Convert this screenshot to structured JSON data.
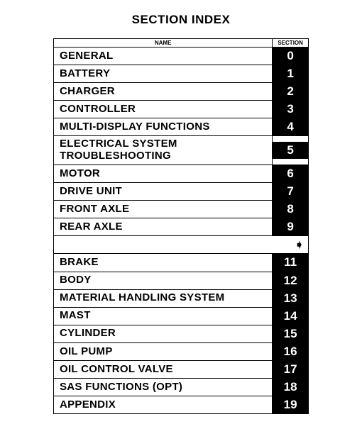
{
  "title": "SECTION INDEX",
  "header": {
    "name": "NAME",
    "section": "SECTION"
  },
  "rows": [
    {
      "name": "GENERAL",
      "section": "0",
      "black": true
    },
    {
      "name": "BATTERY",
      "section": "1",
      "black": true
    },
    {
      "name": "CHARGER",
      "section": "2",
      "black": true
    },
    {
      "name": "CONTROLLER",
      "section": "3",
      "black": true
    },
    {
      "name": "MULTI-DISPLAY FUNCTIONS",
      "section": "4",
      "black": true
    },
    {
      "name": "ELECTRICAL SYSTEM TROUBLESHOOTING",
      "section": "5",
      "black": true
    },
    {
      "name": "MOTOR",
      "section": "6",
      "black": true
    },
    {
      "name": "DRIVE UNIT",
      "section": "7",
      "black": true
    },
    {
      "name": "FRONT AXLE",
      "section": "8",
      "black": true
    },
    {
      "name": "REAR AXLE",
      "section": "9",
      "black": true
    },
    {
      "name": "",
      "section": "➧",
      "black": false
    },
    {
      "name": "BRAKE",
      "section": "11",
      "black": true
    },
    {
      "name": "BODY",
      "section": "12",
      "black": true
    },
    {
      "name": "MATERIAL HANDLING SYSTEM",
      "section": "13",
      "black": true
    },
    {
      "name": "MAST",
      "section": "14",
      "black": true
    },
    {
      "name": "CYLINDER",
      "section": "15",
      "black": true
    },
    {
      "name": "OIL PUMP",
      "section": "16",
      "black": true
    },
    {
      "name": "OIL CONTROL VALVE",
      "section": "17",
      "black": true
    },
    {
      "name": "SAS FUNCTIONS (OPT)",
      "section": "18",
      "black": true
    },
    {
      "name": "APPENDIX",
      "section": "19",
      "black": true
    }
  ],
  "colors": {
    "section_bg": "#000000",
    "section_fg": "#ffffff",
    "page_bg": "#ffffff",
    "border": "#000000"
  }
}
